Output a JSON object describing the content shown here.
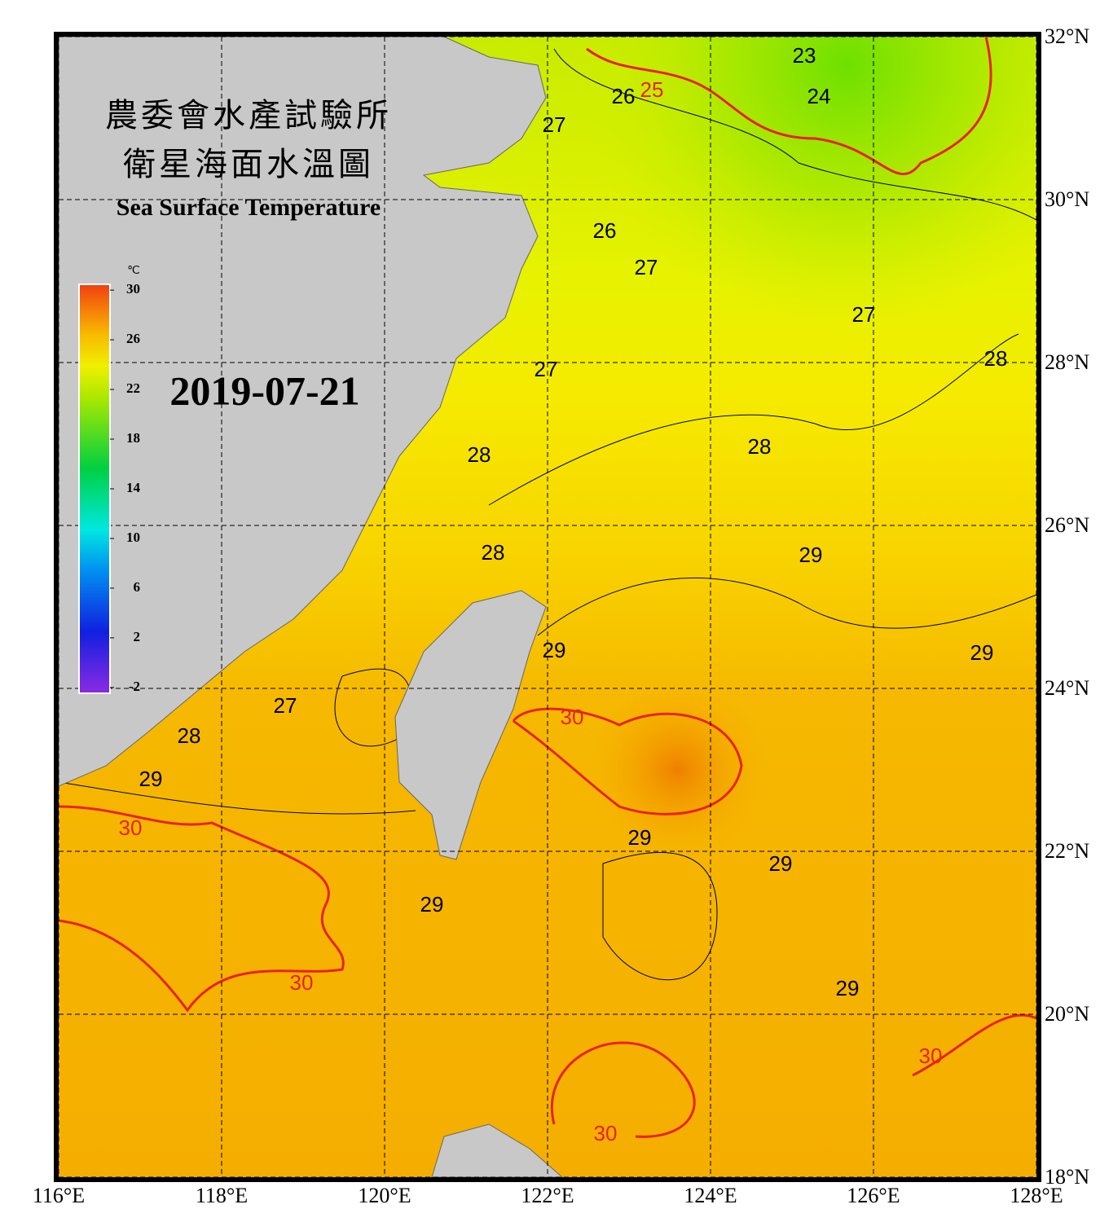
{
  "map": {
    "title_lines": [
      "農委會水產試驗所",
      "衛星海面水溫圖"
    ],
    "subtitle": "Sea Surface Temperature",
    "date": "2019-07-21",
    "lonlim": [
      116,
      128
    ],
    "latlim": [
      18,
      32
    ],
    "lonticks": [
      {
        "value": 116,
        "label": "116°E"
      },
      {
        "value": 118,
        "label": "118°E"
      },
      {
        "value": 120,
        "label": "120°E"
      },
      {
        "value": 122,
        "label": "122°E"
      },
      {
        "value": 124,
        "label": "124°E"
      },
      {
        "value": 126,
        "label": "126°E"
      },
      {
        "value": 128,
        "label": "128°E"
      }
    ],
    "latticks": [
      {
        "value": 18,
        "label": "18°N"
      },
      {
        "value": 20,
        "label": "20°N"
      },
      {
        "value": 22,
        "label": "22°N"
      },
      {
        "value": 24,
        "label": "24°N"
      },
      {
        "value": 26,
        "label": "26°N"
      },
      {
        "value": 28,
        "label": "28°N"
      },
      {
        "value": 30,
        "label": "30°N"
      },
      {
        "value": 32,
        "label": "32°N"
      }
    ],
    "grid": true,
    "colorbar": {
      "unit": "℃",
      "lim": [
        -2.4,
        30.4
      ],
      "ticks": [
        -2,
        2,
        6,
        10,
        14,
        18,
        22,
        26,
        30
      ]
    },
    "contour_labels": [
      {
        "value": 23,
        "lon": 125.15,
        "lat": 31.75,
        "color": "#000000"
      },
      {
        "value": 25,
        "lon": 123.28,
        "lat": 31.33,
        "color": "#e8231e"
      },
      {
        "value": 26,
        "lon": 122.93,
        "lat": 31.25,
        "color": "#000000"
      },
      {
        "value": 24,
        "lon": 125.33,
        "lat": 31.25,
        "color": "#000000"
      },
      {
        "value": 27,
        "lon": 122.08,
        "lat": 30.9,
        "color": "#000000"
      },
      {
        "value": 26,
        "lon": 122.7,
        "lat": 29.6,
        "color": "#000000"
      },
      {
        "value": 27,
        "lon": 123.21,
        "lat": 29.15,
        "color": "#000000"
      },
      {
        "value": 27,
        "lon": 125.88,
        "lat": 28.57,
        "color": "#000000"
      },
      {
        "value": 27,
        "lon": 121.98,
        "lat": 27.9,
        "color": "#000000"
      },
      {
        "value": 28,
        "lon": 127.5,
        "lat": 28.03,
        "color": "#000000"
      },
      {
        "value": 28,
        "lon": 124.6,
        "lat": 26.95,
        "color": "#000000"
      },
      {
        "value": 28,
        "lon": 121.16,
        "lat": 26.85,
        "color": "#000000"
      },
      {
        "value": 28,
        "lon": 121.33,
        "lat": 25.65,
        "color": "#000000"
      },
      {
        "value": 29,
        "lon": 125.23,
        "lat": 25.62,
        "color": "#000000"
      },
      {
        "value": 29,
        "lon": 122.08,
        "lat": 24.45,
        "color": "#000000"
      },
      {
        "value": 29,
        "lon": 127.33,
        "lat": 24.42,
        "color": "#000000"
      },
      {
        "value": 27,
        "lon": 118.78,
        "lat": 23.77,
        "color": "#000000"
      },
      {
        "value": 30,
        "lon": 122.3,
        "lat": 23.63,
        "color": "#e8231e"
      },
      {
        "value": 28,
        "lon": 117.6,
        "lat": 23.4,
        "color": "#000000"
      },
      {
        "value": 29,
        "lon": 117.13,
        "lat": 22.87,
        "color": "#000000"
      },
      {
        "value": 30,
        "lon": 116.88,
        "lat": 22.27,
        "color": "#e8231e"
      },
      {
        "value": 29,
        "lon": 123.13,
        "lat": 22.15,
        "color": "#000000"
      },
      {
        "value": 29,
        "lon": 124.86,
        "lat": 21.83,
        "color": "#000000"
      },
      {
        "value": 29,
        "lon": 120.58,
        "lat": 21.33,
        "color": "#000000"
      },
      {
        "value": 30,
        "lon": 118.98,
        "lat": 20.37,
        "color": "#e8231e"
      },
      {
        "value": 29,
        "lon": 125.68,
        "lat": 20.3,
        "color": "#000000"
      },
      {
        "value": 30,
        "lon": 126.7,
        "lat": 19.47,
        "color": "#e8231e"
      },
      {
        "value": 30,
        "lon": 122.71,
        "lat": 18.52,
        "color": "#e8231e"
      }
    ]
  }
}
